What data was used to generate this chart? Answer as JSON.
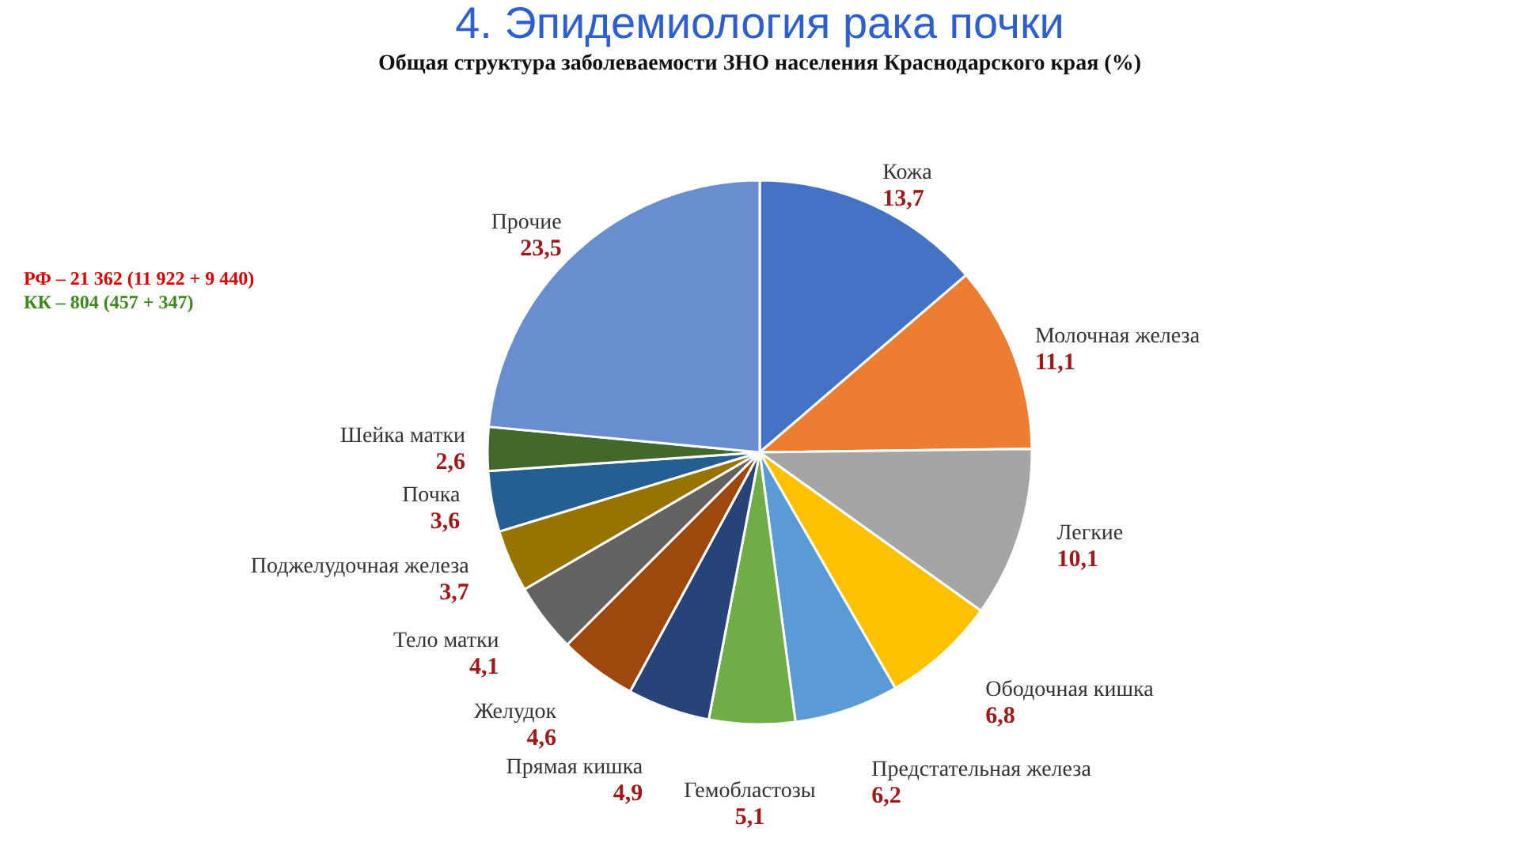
{
  "chart_data": {
    "type": "pie",
    "title": "4. Эпидемиология рака почки",
    "subtitle": "Общая структура заболеваемости ЗНО населения Краснодарского края (%)",
    "categories": [
      "Кожа",
      "Молочная железа",
      "Легкие",
      "Ободочная кишка",
      "Предстательная железа",
      "Гемобластозы",
      "Прямая кишка",
      "Желудок",
      "Тело матки",
      "Поджелудочная железа",
      "Почка",
      "Шейка матки",
      "Прочие"
    ],
    "values": [
      13.7,
      11.1,
      10.1,
      6.8,
      6.2,
      5.1,
      4.9,
      4.6,
      4.1,
      3.7,
      3.6,
      2.6,
      23.5
    ],
    "colors": [
      "#4472c4",
      "#ed7d31",
      "#a5a5a5",
      "#ffc000",
      "#5b9bd5",
      "#70ad47",
      "#264478",
      "#9e480e",
      "#636363",
      "#997300",
      "#255e91",
      "#43682b",
      "#698ed0"
    ],
    "value_labels": [
      "13,7",
      "11,1",
      "10,1",
      "6,8",
      "6,2",
      "5,1",
      "4,9",
      "4,6",
      "4,1",
      "3,7",
      "3,6",
      "2,6",
      "23,5"
    ],
    "legend": false,
    "annotations": [
      "РФ – 21 362 (11 922 + 9 440)",
      "КК – 804 (457 + 347)"
    ]
  }
}
